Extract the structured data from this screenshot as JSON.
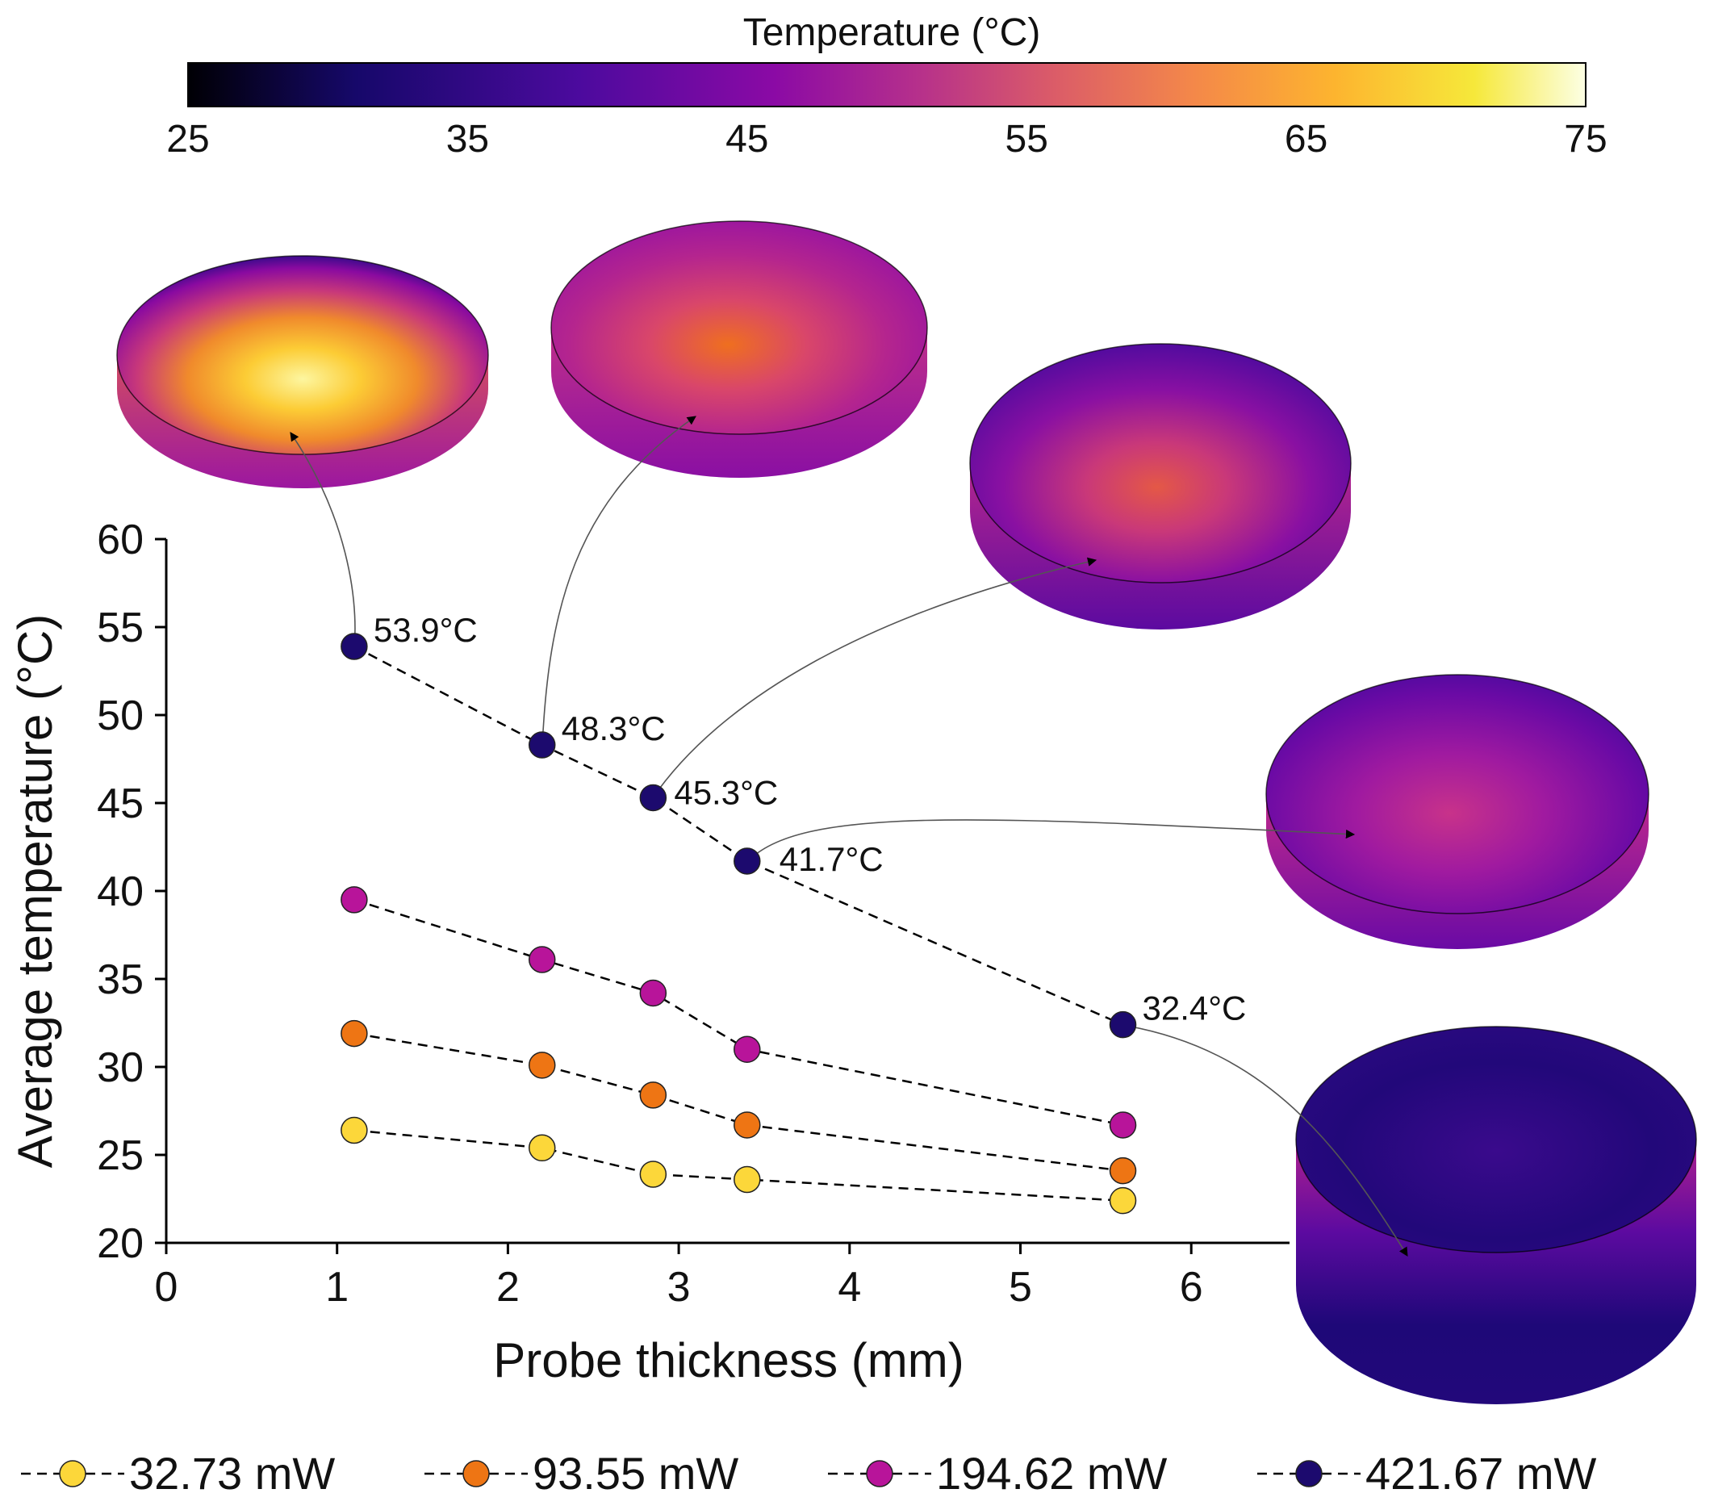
{
  "chart_data": {
    "type": "line",
    "xlabel": "Probe thickness (mm)",
    "ylabel": "Average temperature (°C)",
    "xlim": [
      0,
      6.8
    ],
    "ylim": [
      20,
      60
    ],
    "xticks": [
      "0",
      "1",
      "2",
      "3",
      "4",
      "5",
      "6"
    ],
    "yticks": [
      "20",
      "25",
      "30",
      "35",
      "40",
      "45",
      "50",
      "55",
      "60"
    ],
    "x": [
      1.1,
      2.2,
      2.85,
      3.4,
      5.6
    ],
    "series": [
      {
        "name": "32.73 mW",
        "color": "#FCD73A",
        "values": [
          26.4,
          25.4,
          23.9,
          23.6,
          22.4
        ]
      },
      {
        "name": "93.55 mW",
        "color": "#EE7514",
        "values": [
          31.9,
          30.1,
          28.4,
          26.7,
          24.1
        ]
      },
      {
        "name": "194.62 mW",
        "color": "#B8149A",
        "values": [
          39.5,
          36.1,
          34.2,
          31.0,
          26.7
        ]
      },
      {
        "name": "421.67 mW",
        "color": "#1C0A6E",
        "values": [
          53.9,
          48.3,
          45.3,
          41.7,
          32.4
        ]
      }
    ],
    "annotations": [
      "53.9°C",
      "48.3°C",
      "45.3°C",
      "41.7°C",
      "32.4°C"
    ],
    "colorbar": {
      "title": "Temperature (°C)",
      "min": 25,
      "max": 75,
      "ticks": [
        "25",
        "35",
        "45",
        "55",
        "65",
        "75"
      ]
    }
  }
}
